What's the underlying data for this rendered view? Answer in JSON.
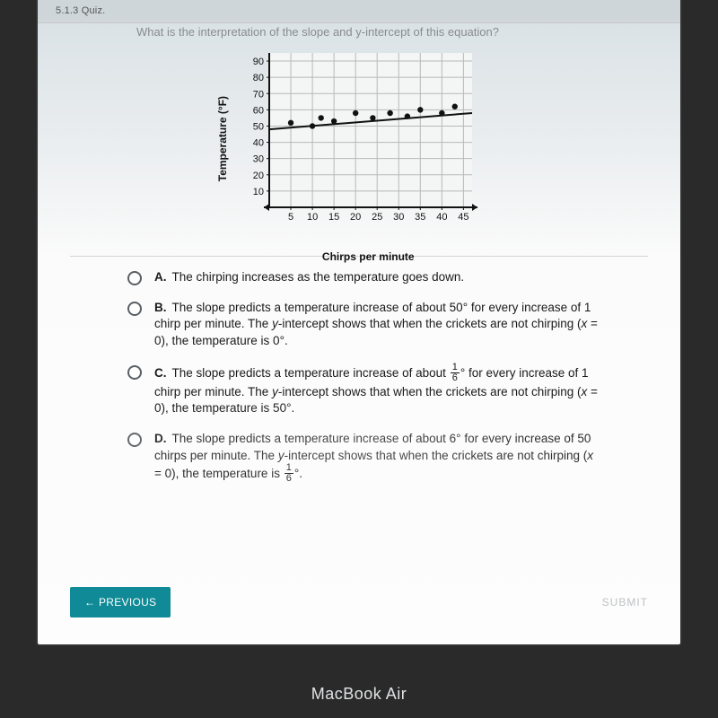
{
  "topstrip": "5.1.3 Quiz.",
  "stem": "What is the interpretation of the slope and y-intercept of this equation?",
  "chart": {
    "type": "scatter",
    "ylabel": "Temperature (°F)",
    "xlabel": "Chirps per minute",
    "xlim": [
      0,
      47
    ],
    "ylim": [
      0,
      95
    ],
    "xticks": [
      5,
      10,
      15,
      20,
      25,
      30,
      35,
      40,
      45
    ],
    "yticks": [
      10,
      20,
      30,
      40,
      50,
      60,
      70,
      80,
      90
    ],
    "grid_color": "#b8b8b8",
    "axis_color": "#111111",
    "point_color": "#111111",
    "line_color": "#111111",
    "bg": "#f4f5f5",
    "points": [
      [
        5,
        52
      ],
      [
        10,
        50
      ],
      [
        12,
        55
      ],
      [
        15,
        53
      ],
      [
        20,
        58
      ],
      [
        24,
        55
      ],
      [
        28,
        58
      ],
      [
        32,
        56
      ],
      [
        35,
        60
      ],
      [
        40,
        58
      ],
      [
        43,
        62
      ]
    ],
    "fit_line": {
      "x1": 0,
      "y1": 48,
      "x2": 47,
      "y2": 58
    },
    "label_fontsize": 11
  },
  "choices": [
    {
      "letter": "A.",
      "text_pre": "The chirping increases as the temperature goes down."
    },
    {
      "letter": "B.",
      "text_pre": "The slope predicts a temperature increase of about 50° for every increase of 1 chirp per minute. The ",
      "y_int": true,
      "text_post": "-intercept shows that when the crickets are not chirping (",
      "x_eq": true,
      "tail": " = 0), the temperature is 0°."
    },
    {
      "letter": "C.",
      "text_pre": "The slope predicts a temperature increase of about ",
      "frac_first": {
        "n": "1",
        "d": "6"
      },
      "after_frac": "° for every increase of 1 chirp per minute. The ",
      "y_int": true,
      "text_post": "-intercept shows that when the crickets are not chirping (",
      "x_eq": true,
      "tail": " = 0), the temperature is 50°."
    },
    {
      "letter": "D.",
      "text_pre": "The slope predicts a temperature increase of about 6° for every increase of 50 chirps per minute. The ",
      "y_int": true,
      "text_post": "-intercept shows that when the crickets are not chirping (",
      "x_eq": true,
      "tail_pre": " = 0), the temperature is ",
      "frac_tail": {
        "n": "1",
        "d": "6"
      },
      "tail_suffix": "°."
    }
  ],
  "buttons": {
    "previous": "PREVIOUS",
    "submit": "SUBMIT"
  },
  "device": "MacBook Air",
  "y_var": "y",
  "x_var": "x"
}
